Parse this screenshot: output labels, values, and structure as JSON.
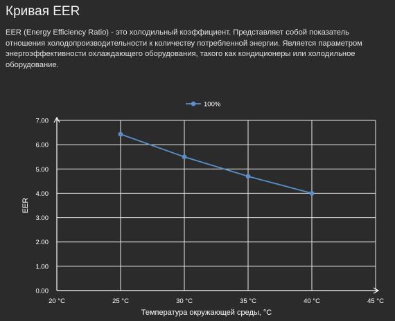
{
  "page": {
    "title": "Кривая EER",
    "description": "EER (Energy Efficiency Ratio) - это холодильный коэффициент. Представляет собой показатель отношения холодопроизводительности к количеству потребленной энергии. Является параметром энергоэффективности охлаждающего оборудования, такого как кондиционеры или холодильное оборудование."
  },
  "chart_data": {
    "type": "line",
    "title": "",
    "xlabel": "Температура окружающей среды, °C",
    "ylabel": "EER",
    "x_ticks": [
      "20 °C",
      "25 °C",
      "30 °C",
      "35 °C",
      "40 °C",
      "45 °C"
    ],
    "y_ticks": [
      "0.00",
      "1.00",
      "2.00",
      "3.00",
      "4.00",
      "5.00",
      "6.00",
      "7.00"
    ],
    "xlim": [
      20,
      45
    ],
    "ylim": [
      0,
      7
    ],
    "grid": true,
    "legend_position": "top-center",
    "series": [
      {
        "name": "100%",
        "color": "#5b8fc9",
        "x": [
          25,
          30,
          35,
          40
        ],
        "y": [
          6.43,
          5.5,
          4.7,
          4.0
        ]
      }
    ]
  }
}
